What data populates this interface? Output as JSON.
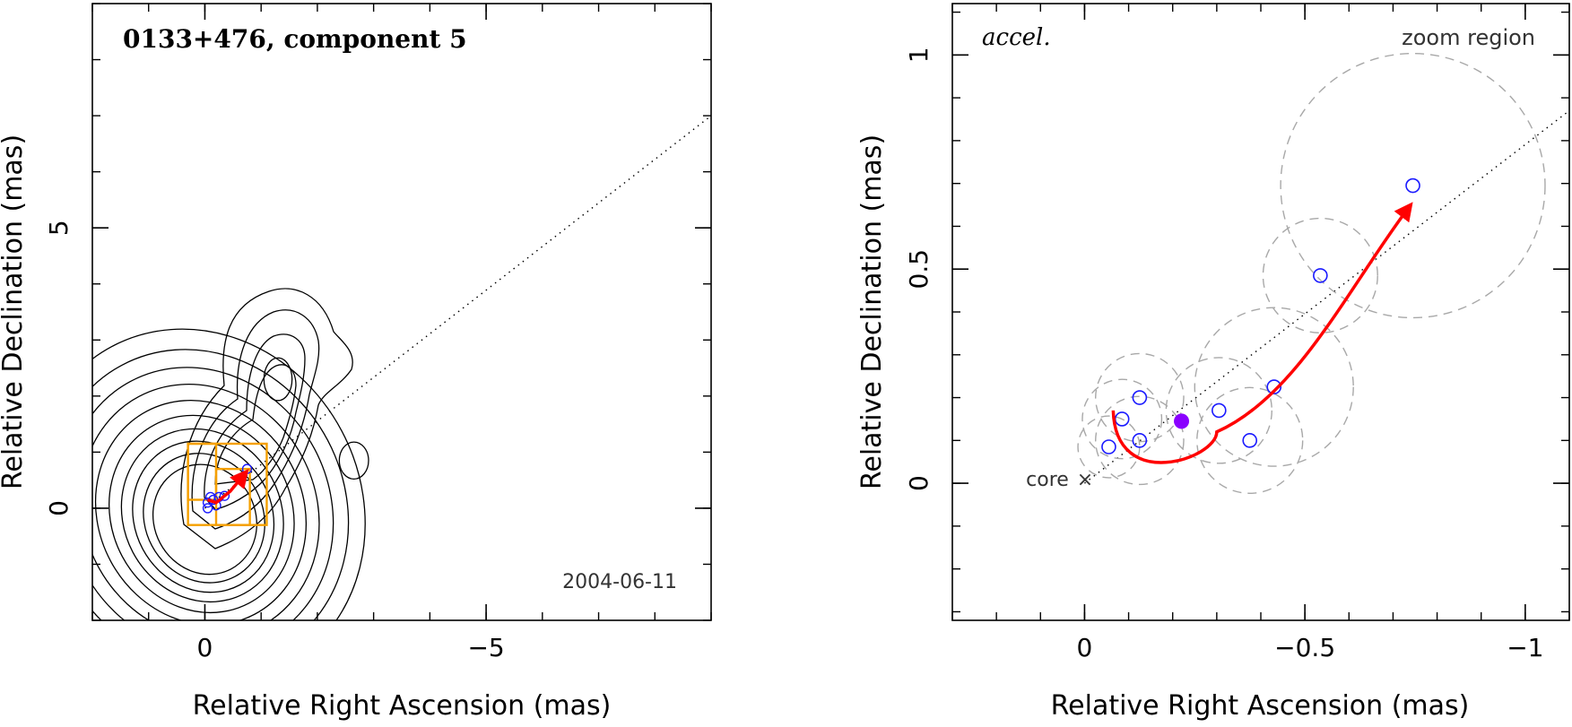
{
  "colors": {
    "contour": "#000000",
    "box": "#f5a000",
    "component": "#1a1aff",
    "filled": "#8a00ff",
    "arrow": "#ff0000",
    "dashed": "#a8a8a8"
  },
  "chart_data": [
    {
      "type": "scatter",
      "name": "left-panel",
      "title": "0133+476, component 5",
      "date": "2004-06-11",
      "xlabel": "Relative Right Ascension (mas)",
      "ylabel": "Relative Declination (mas)",
      "xlim": [
        2.0,
        -9.0
      ],
      "ylim": [
        -2.0,
        9.0
      ],
      "xticks": [
        {
          "v": 0,
          "label": "0"
        },
        {
          "v": -5,
          "label": "−5"
        }
      ],
      "yticks": [
        {
          "v": 0,
          "label": "0"
        },
        {
          "v": 5,
          "label": "5"
        }
      ],
      "xminor_step": 1,
      "yminor_step": 1,
      "ridge_line": {
        "x": [
          0,
          -9.0
        ],
        "y": [
          0,
          7.0
        ]
      },
      "contours": {
        "core_center": [
          0.0,
          -0.2
        ],
        "core_levels_ab": [
          [
            0.9,
            1.0
          ],
          [
            1.05,
            1.18
          ],
          [
            1.22,
            1.38
          ],
          [
            1.4,
            1.58
          ],
          [
            1.6,
            1.8
          ],
          [
            1.82,
            2.05
          ],
          [
            2.06,
            2.32
          ],
          [
            2.32,
            2.6
          ],
          [
            2.6,
            2.9
          ],
          [
            2.9,
            3.25
          ]
        ],
        "core_angle_deg": -28,
        "blob": {
          "center": [
            -2.65,
            0.85
          ],
          "rx": 0.26,
          "ry": 0.33
        },
        "knot": {
          "center": [
            -1.3,
            2.3
          ],
          "rx": 0.25,
          "ry": 0.38
        }
      },
      "boxes": [
        [
          0.3,
          -1.1,
          -0.3,
          1.15
        ],
        [
          -0.2,
          -0.8,
          -0.3,
          0.7
        ],
        [
          0.3,
          -0.2,
          0.15,
          1.15
        ]
      ],
      "components": [
        [
          -0.05,
          0.1
        ],
        [
          -0.15,
          0.15
        ],
        [
          -0.25,
          0.2
        ],
        [
          -0.35,
          0.22
        ],
        [
          -0.2,
          0.05
        ],
        [
          -0.1,
          0.2
        ],
        [
          -0.05,
          0.0
        ],
        [
          -0.75,
          0.7
        ]
      ],
      "arrow": {
        "x": [
          -0.05,
          -0.2,
          -0.45,
          -0.74
        ],
        "y": [
          0.15,
          0.1,
          0.3,
          0.65
        ]
      }
    },
    {
      "type": "scatter",
      "name": "right-panel",
      "title": "accel.",
      "region_label": "zoom region",
      "core_label": "core",
      "xlabel": "Relative Right Ascension (mas)",
      "ylabel": "Relative Declination (mas)",
      "xlim": [
        0.3,
        -1.1
      ],
      "ylim": [
        -0.32,
        1.12
      ],
      "xticks": [
        {
          "v": 0,
          "label": "0"
        },
        {
          "v": -0.5,
          "label": "−0.5"
        },
        {
          "v": -1,
          "label": "−1"
        }
      ],
      "yticks": [
        {
          "v": 0,
          "label": "0"
        },
        {
          "v": 0.5,
          "label": "0.5"
        },
        {
          "v": 1,
          "label": "1"
        }
      ],
      "xminor_step": 0.1,
      "yminor_step": 0.1,
      "ridge_line": {
        "x": [
          0,
          -1.1
        ],
        "y": [
          0,
          0.87
        ]
      },
      "points": [
        {
          "x": -0.055,
          "y": 0.085,
          "r": 0.07
        },
        {
          "x": -0.085,
          "y": 0.15,
          "r": 0.09
        },
        {
          "x": -0.125,
          "y": 0.2,
          "r": 0.1
        },
        {
          "x": -0.125,
          "y": 0.1,
          "r": 0.1
        },
        {
          "x": -0.305,
          "y": 0.17,
          "r": 0.12
        },
        {
          "x": -0.375,
          "y": 0.1,
          "r": 0.12
        },
        {
          "x": -0.43,
          "y": 0.225,
          "r": 0.18
        },
        {
          "x": -0.535,
          "y": 0.485,
          "r": 0.13
        },
        {
          "x": -0.745,
          "y": 0.695,
          "r": 0.3
        }
      ],
      "filled_point": {
        "x": -0.22,
        "y": 0.145
      },
      "arrow": {
        "x": [
          -0.065,
          -0.07,
          -0.3,
          -0.6,
          -0.74
        ],
        "y": [
          0.17,
          0.06,
          0.12,
          0.46,
          0.65
        ]
      }
    }
  ]
}
